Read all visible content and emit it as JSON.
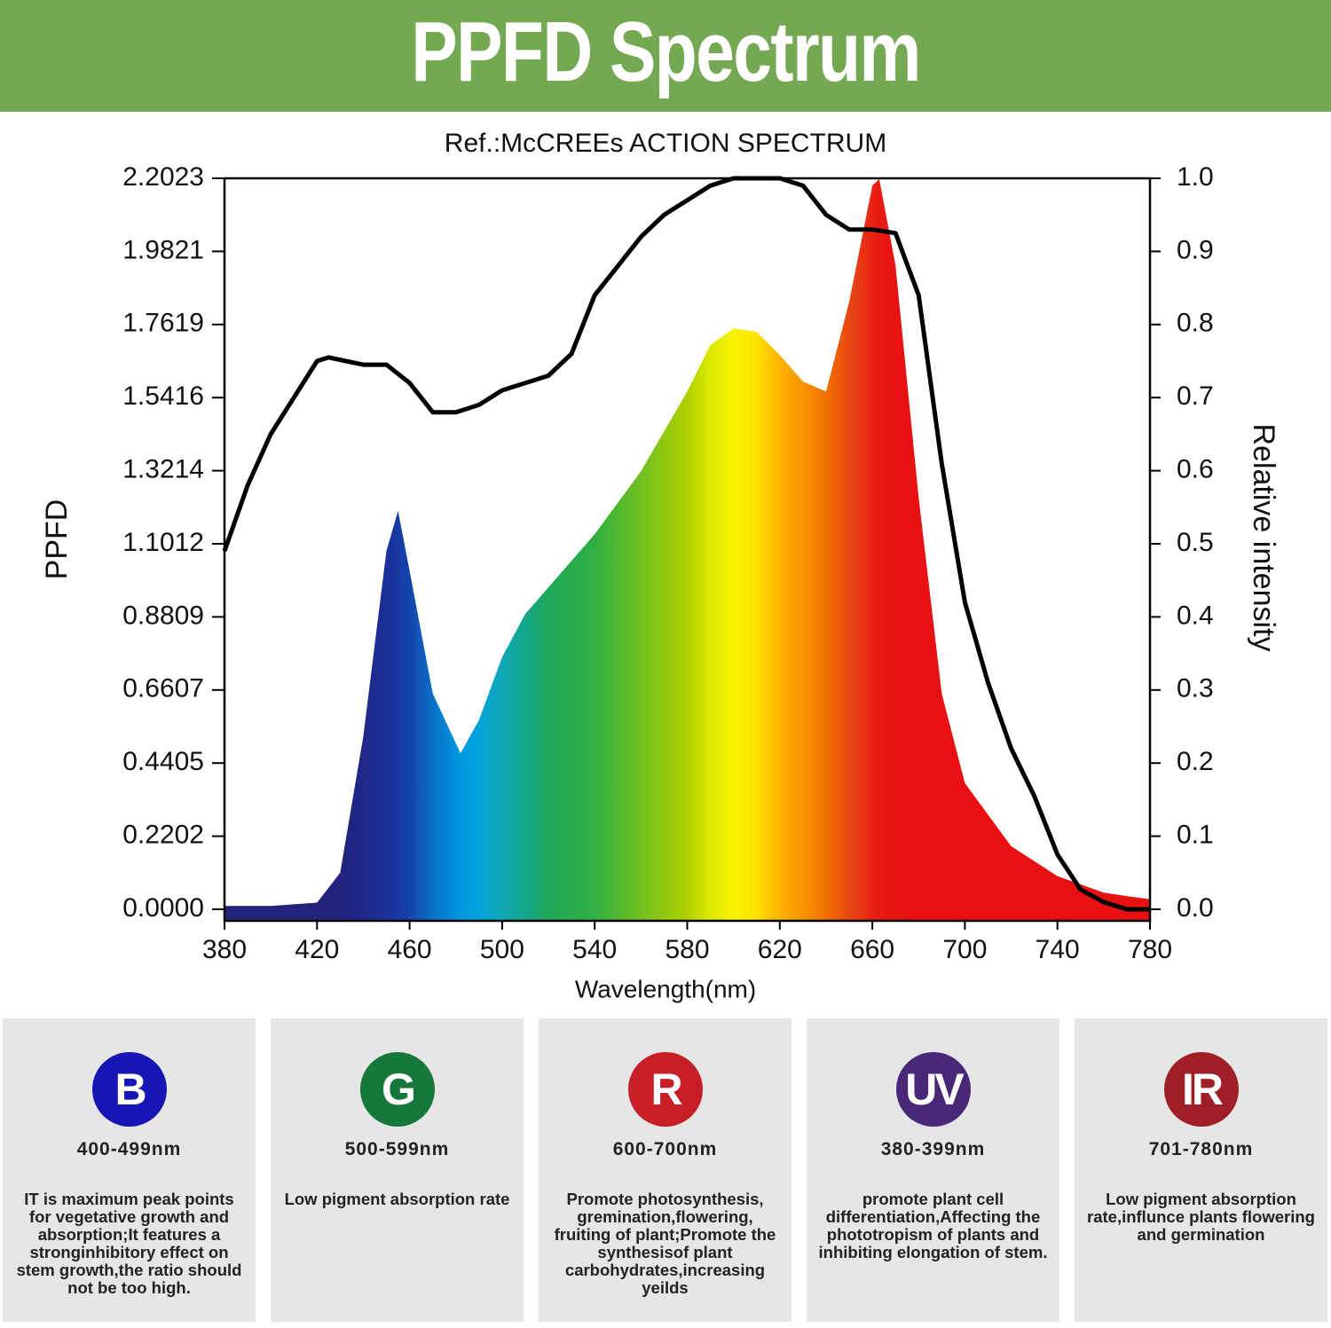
{
  "header": {
    "title": "PPFD Spectrum"
  },
  "chart_data": {
    "type": "line",
    "title": "Ref.:McCREEs ACTION SPECTRUM",
    "xlabel": "Wavelength(nm)",
    "ylabel": "PPFD",
    "y2label": "Relative intensity",
    "xlim": [
      380,
      780
    ],
    "xticks": [
      380,
      420,
      460,
      500,
      540,
      580,
      620,
      660,
      700,
      740,
      780
    ],
    "ylim": [
      0,
      2.2023
    ],
    "yticks": [
      {
        "value": 0,
        "label": "0.0000"
      },
      0.2202,
      0.4405,
      0.6607,
      0.8809,
      1.1012,
      1.3214,
      1.5416,
      1.7619,
      1.9821,
      2.2023
    ],
    "y2lim": [
      0,
      1
    ],
    "y2ticks": [
      {
        "value": 0,
        "label": "0.0"
      },
      0.1,
      0.2,
      0.3,
      0.4,
      0.5,
      0.6,
      0.7,
      0.8,
      0.9,
      {
        "value": 1,
        "label": "1.0"
      }
    ],
    "series": [
      {
        "fill": true,
        "x": [
          380,
          400,
          420,
          430,
          440,
          450,
          455,
          460,
          470,
          482,
          490,
          500,
          510,
          520,
          540,
          560,
          580,
          590,
          600,
          610,
          620,
          630,
          640,
          650,
          660,
          663,
          670,
          680,
          690,
          700,
          720,
          740,
          760,
          780
        ],
        "values": [
          0.01,
          0.01,
          0.02,
          0.11,
          0.52,
          1.08,
          1.2,
          1.02,
          0.65,
          0.47,
          0.57,
          0.76,
          0.89,
          0.97,
          1.13,
          1.32,
          1.56,
          1.7,
          1.75,
          1.74,
          1.67,
          1.59,
          1.56,
          1.83,
          2.18,
          2.2,
          1.94,
          1.24,
          0.65,
          0.38,
          0.19,
          0.1,
          0.05,
          0.03
        ],
        "color": [
          "#22227a",
          "#22227a",
          "#22227a",
          "#22227c",
          "#1e2888",
          "#1c3098",
          "#1838a2",
          "#1444ac",
          "#0a70c8",
          "#0098e0",
          "#00a4dc",
          "#10a8b4",
          "#12a88a",
          "#20a85a",
          "#30b040",
          "#70c020",
          "#b0d000",
          "#dcea00",
          "#f8f400",
          "#ffe000",
          "#ffb400",
          "#f89400",
          "#f07000",
          "#e84814",
          "#e82412",
          "#e81a12",
          "#e81212",
          "#e81010",
          "#e81010",
          "#e81010",
          "#e81010",
          "#e81010",
          "#e81010",
          "#e81010"
        ]
      },
      {
        "axis": "y2",
        "color": "#000000",
        "x": [
          380,
          390,
          400,
          410,
          420,
          425,
          440,
          450,
          460,
          470,
          480,
          490,
          500,
          510,
          520,
          530,
          540,
          550,
          560,
          570,
          580,
          590,
          600,
          620,
          630,
          640,
          650,
          660,
          670,
          680,
          690,
          700,
          710,
          720,
          730,
          740,
          750,
          760,
          770,
          780
        ],
        "values": [
          0.49,
          0.58,
          0.65,
          0.7,
          0.75,
          0.755,
          0.745,
          0.745,
          0.72,
          0.68,
          0.68,
          0.69,
          0.71,
          0.72,
          0.73,
          0.76,
          0.84,
          0.88,
          0.92,
          0.95,
          0.97,
          0.99,
          1,
          1,
          0.99,
          0.95,
          0.93,
          0.93,
          0.925,
          0.84,
          0.61,
          0.42,
          0.31,
          0.22,
          0.155,
          0.075,
          0.027,
          0.01,
          0,
          0
        ]
      }
    ]
  },
  "cards": [
    {
      "icon": "B",
      "range": "400-499nm",
      "text": "IT is maximum peak points for vegetative growth and absorption;It features a stronginhibitory effect on stem growth,the ratio should not be too high."
    },
    {
      "icon": "G",
      "range": "500-599nm",
      "text": "Low pigment absorption rate"
    },
    {
      "icon": "R",
      "range": "600-700nm",
      "text": "Promote photosynthesis, gremination,flowering, fruiting of plant;Promote the synthesisof plant carbohydrates,increasing yeilds"
    },
    {
      "icon": "UV",
      "range": "380-399nm",
      "text": "promote plant cell differentiation,Affecting the phototropism of plants and inhibiting elongation of stem."
    },
    {
      "icon": "IR",
      "range": "701-780nm",
      "text": "Low pigment absorption rate,influnce plants flowering and germination"
    }
  ]
}
